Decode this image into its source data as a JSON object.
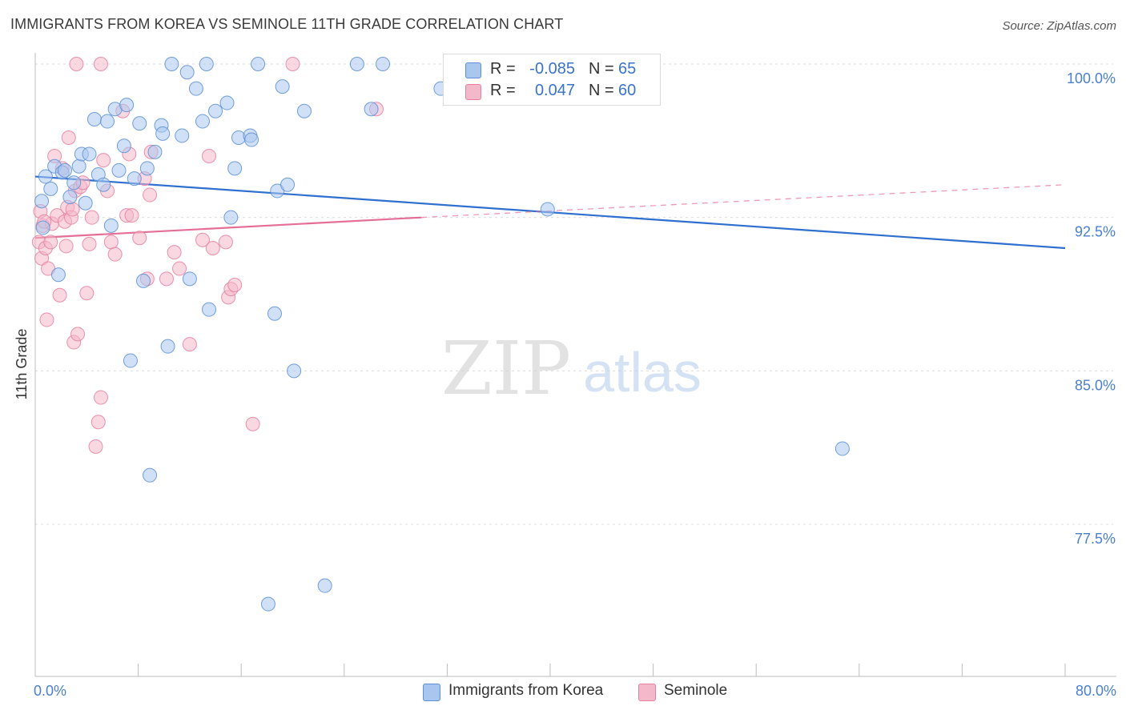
{
  "title": "IMMIGRANTS FROM KOREA VS SEMINOLE 11TH GRADE CORRELATION CHART",
  "source": "Source: ZipAtlas.com",
  "watermark": {
    "zip": "ZIP",
    "atlas": "atlas"
  },
  "legend": {
    "rows": [
      {
        "r_label": "R =",
        "r_value": "-0.085",
        "n_label": "N =",
        "n_value": "65"
      },
      {
        "r_label": "R =",
        "r_value": "0.047",
        "n_label": "N =",
        "n_value": "60"
      }
    ]
  },
  "bottom_legend": {
    "series1": "Immigrants from Korea",
    "series2": "Seminole"
  },
  "colors": {
    "series1_fill": "#a9c6ee",
    "series1_stroke": "#5b8fd6",
    "series1_line": "#2e6fd0",
    "series2_fill": "#f4b8cb",
    "series2_stroke": "#e77fa0",
    "series2_line": "#e46e96",
    "tick_text": "#4a7fd0",
    "grid": "#dcdcdc"
  },
  "chart_data": {
    "type": "scatter",
    "title": "IMMIGRANTS FROM KOREA VS SEMINOLE 11TH GRADE CORRELATION CHART",
    "xlabel": "",
    "ylabel": "11th Grade",
    "xlim": [
      0,
      80
    ],
    "ylim": [
      71.0,
      100.8
    ],
    "x_ticks": [
      0,
      8,
      16,
      24,
      32,
      40,
      48,
      56,
      64,
      72,
      80
    ],
    "x_tick_labels": [
      "0.0%",
      "",
      "",
      "",
      "",
      "",
      "",
      "",
      "",
      "",
      "80.0%"
    ],
    "y_ticks": [
      100.0,
      92.5,
      85.0,
      77.5
    ],
    "y_tick_labels": [
      "100.0%",
      "92.5%",
      "85.0%",
      "77.5%"
    ],
    "grid": true,
    "legend_position": "top-center",
    "series": [
      {
        "name": "Immigrants from Korea",
        "R": -0.085,
        "N": 65,
        "trend": {
          "x": [
            0,
            80
          ],
          "y": [
            94.5,
            91.0
          ]
        },
        "points": [
          [
            0.5,
            93.3
          ],
          [
            0.8,
            94.5
          ],
          [
            1.2,
            93.9
          ],
          [
            1.5,
            95.0
          ],
          [
            1.8,
            89.7
          ],
          [
            2.1,
            94.7
          ],
          [
            2.3,
            94.8
          ],
          [
            2.7,
            93.5
          ],
          [
            3.0,
            94.2
          ],
          [
            3.4,
            95.0
          ],
          [
            3.6,
            95.6
          ],
          [
            3.9,
            93.2
          ],
          [
            4.2,
            95.6
          ],
          [
            4.6,
            97.3
          ],
          [
            4.9,
            94.6
          ],
          [
            5.3,
            94.1
          ],
          [
            5.6,
            97.2
          ],
          [
            5.9,
            92.1
          ],
          [
            6.2,
            97.8
          ],
          [
            6.5,
            94.8
          ],
          [
            6.9,
            96.0
          ],
          [
            7.1,
            98.0
          ],
          [
            7.4,
            85.5
          ],
          [
            7.7,
            94.4
          ],
          [
            8.1,
            97.1
          ],
          [
            8.4,
            89.4
          ],
          [
            8.7,
            94.9
          ],
          [
            8.9,
            79.9
          ],
          [
            9.3,
            95.7
          ],
          [
            9.8,
            97.0
          ],
          [
            9.9,
            96.6
          ],
          [
            10.3,
            86.2
          ],
          [
            10.6,
            100.0
          ],
          [
            11.4,
            96.5
          ],
          [
            11.8,
            99.6
          ],
          [
            12.0,
            89.5
          ],
          [
            12.5,
            98.8
          ],
          [
            13.0,
            97.2
          ],
          [
            13.3,
            100.0
          ],
          [
            13.5,
            88.0
          ],
          [
            14.0,
            97.7
          ],
          [
            14.9,
            98.1
          ],
          [
            15.2,
            92.5
          ],
          [
            15.5,
            94.9
          ],
          [
            15.8,
            96.4
          ],
          [
            16.7,
            96.5
          ],
          [
            16.8,
            96.3
          ],
          [
            17.3,
            100.0
          ],
          [
            18.1,
            73.6
          ],
          [
            18.6,
            87.8
          ],
          [
            18.8,
            93.8
          ],
          [
            19.2,
            98.9
          ],
          [
            19.6,
            94.1
          ],
          [
            20.1,
            85.0
          ],
          [
            20.9,
            97.7
          ],
          [
            22.5,
            74.5
          ],
          [
            25.0,
            100.0
          ],
          [
            26.1,
            97.8
          ],
          [
            27.0,
            100.0
          ],
          [
            31.5,
            98.8
          ],
          [
            35.4,
            100.0
          ],
          [
            39.5,
            100.0
          ],
          [
            39.8,
            92.9
          ],
          [
            62.7,
            81.2
          ],
          [
            0.6,
            92.0
          ]
        ]
      },
      {
        "name": "Seminole",
        "R": 0.047,
        "N": 60,
        "trend": {
          "x": [
            0,
            30
          ],
          "y": [
            91.5,
            92.5
          ]
        },
        "trend_dashed": {
          "x": [
            30,
            80
          ],
          "y": [
            92.5,
            94.1
          ]
        },
        "points": [
          [
            0.3,
            91.3
          ],
          [
            0.4,
            92.8
          ],
          [
            0.5,
            90.5
          ],
          [
            0.6,
            92.1
          ],
          [
            0.8,
            91.0
          ],
          [
            0.9,
            87.5
          ],
          [
            1.0,
            90.0
          ],
          [
            1.2,
            91.3
          ],
          [
            1.3,
            92.2
          ],
          [
            1.5,
            95.5
          ],
          [
            1.7,
            92.6
          ],
          [
            1.9,
            88.7
          ],
          [
            2.1,
            94.9
          ],
          [
            2.3,
            92.3
          ],
          [
            2.4,
            91.1
          ],
          [
            2.5,
            93.0
          ],
          [
            2.6,
            96.4
          ],
          [
            2.8,
            92.5
          ],
          [
            2.9,
            92.9
          ],
          [
            3.0,
            86.4
          ],
          [
            3.1,
            93.8
          ],
          [
            3.3,
            86.8
          ],
          [
            3.5,
            94.0
          ],
          [
            3.7,
            94.2
          ],
          [
            4.0,
            88.8
          ],
          [
            4.2,
            91.2
          ],
          [
            4.4,
            92.5
          ],
          [
            4.7,
            81.3
          ],
          [
            4.9,
            82.5
          ],
          [
            5.1,
            83.7
          ],
          [
            5.3,
            95.3
          ],
          [
            5.6,
            93.8
          ],
          [
            5.9,
            91.3
          ],
          [
            6.2,
            90.7
          ],
          [
            6.8,
            97.7
          ],
          [
            7.1,
            92.6
          ],
          [
            7.3,
            95.6
          ],
          [
            7.5,
            92.6
          ],
          [
            8.1,
            91.5
          ],
          [
            8.5,
            94.4
          ],
          [
            8.7,
            89.5
          ],
          [
            8.9,
            93.6
          ],
          [
            9.0,
            95.7
          ],
          [
            10.2,
            89.5
          ],
          [
            10.8,
            90.8
          ],
          [
            11.2,
            90.0
          ],
          [
            12.0,
            86.3
          ],
          [
            13.0,
            91.4
          ],
          [
            13.5,
            95.5
          ],
          [
            13.8,
            91.0
          ],
          [
            14.8,
            91.3
          ],
          [
            15.0,
            88.6
          ],
          [
            15.2,
            89.0
          ],
          [
            15.5,
            89.2
          ],
          [
            16.9,
            82.4
          ],
          [
            20.0,
            100.0
          ],
          [
            26.5,
            97.8
          ],
          [
            3.2,
            100.0
          ],
          [
            5.1,
            100.0
          ],
          [
            0.7,
            92.3
          ]
        ]
      }
    ]
  }
}
